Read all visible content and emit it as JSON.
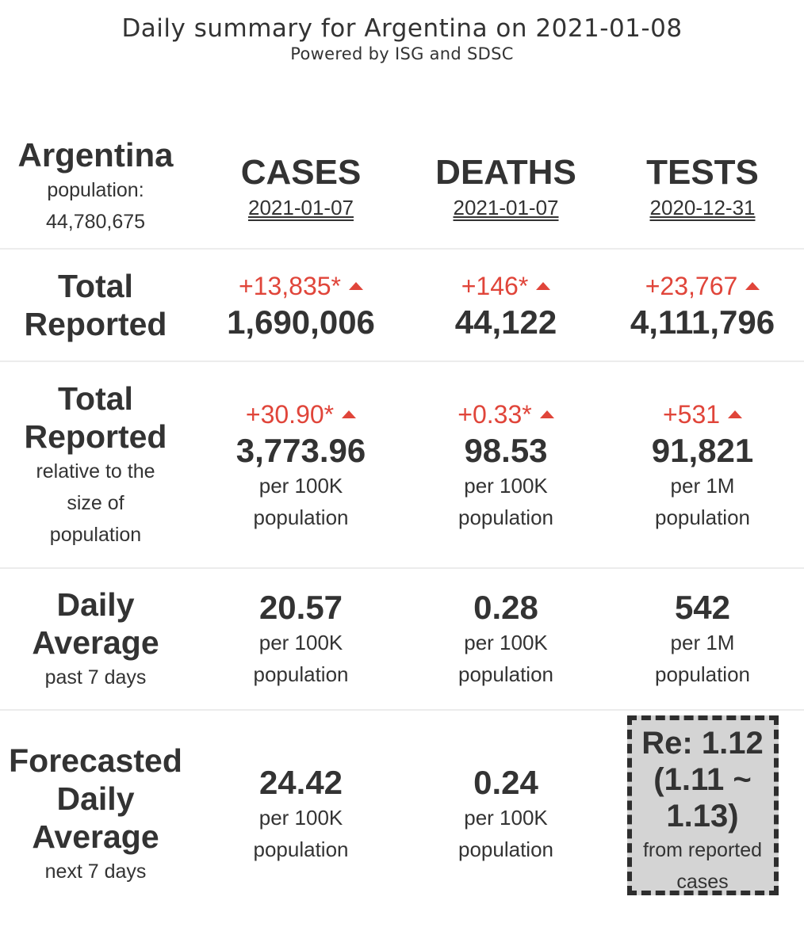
{
  "header": {
    "title": "Daily summary for Argentina on 2021-01-08",
    "subtitle": "Powered by ISG and SDSC"
  },
  "country": {
    "name": "Argentina",
    "population_label": "population:",
    "population_value": "44,780,675"
  },
  "columns": [
    {
      "label": "CASES",
      "date": "2021-01-07"
    },
    {
      "label": "DEATHS",
      "date": "2021-01-07"
    },
    {
      "label": "TESTS",
      "date": "2020-12-31"
    }
  ],
  "rows": {
    "total": {
      "title_1": "Total",
      "title_2": "Reported",
      "cells": [
        {
          "delta": "+13,835*",
          "value": "1,690,006"
        },
        {
          "delta": "+146*",
          "value": "44,122"
        },
        {
          "delta": "+23,767",
          "value": "4,111,796"
        }
      ]
    },
    "relative": {
      "title_1": "Total",
      "title_2": "Reported",
      "note_1": "relative to the",
      "note_2": "size of",
      "note_3": "population",
      "cells": [
        {
          "delta": "+30.90*",
          "value": "3,773.96",
          "unit_1": "per 100K",
          "unit_2": "population"
        },
        {
          "delta": "+0.33*",
          "value": "98.53",
          "unit_1": "per 100K",
          "unit_2": "population"
        },
        {
          "delta": "+531",
          "value": "91,821",
          "unit_1": "per 1M",
          "unit_2": "population"
        }
      ]
    },
    "daily": {
      "title_1": "Daily",
      "title_2": "Average",
      "note": "past 7 days",
      "cells": [
        {
          "value": "20.57",
          "unit_1": "per 100K",
          "unit_2": "population"
        },
        {
          "value": "0.28",
          "unit_1": "per 100K",
          "unit_2": "population"
        },
        {
          "value": "542",
          "unit_1": "per 1M",
          "unit_2": "population"
        }
      ]
    },
    "forecast": {
      "title_1": "Forecasted",
      "title_2": "Daily",
      "title_3": "Average",
      "note": "next 7 days",
      "cells": [
        {
          "value": "24.42",
          "unit_1": "per 100K",
          "unit_2": "population"
        },
        {
          "value": "0.24",
          "unit_1": "per 100K",
          "unit_2": "population"
        }
      ],
      "re_box": {
        "line_1": "Re: 1.12",
        "line_2": "(1.11 ~",
        "line_3": "1.13)",
        "note_1": "from reported",
        "note_2": "cases"
      }
    }
  },
  "colors": {
    "delta_up": "#e0453a",
    "text": "#333333",
    "re_box_bg": "#d4d4d4"
  },
  "icons": {
    "delta_arrow": "triangle-up-icon"
  }
}
